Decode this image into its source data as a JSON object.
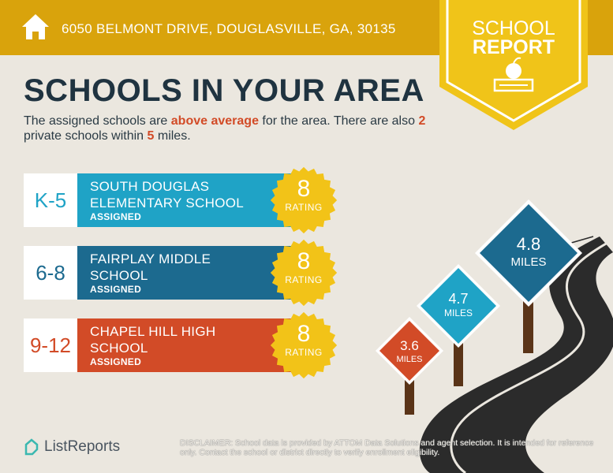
{
  "header": {
    "address": "6050 BELMONT DRIVE, DOUGLASVILLE, GA, 30135",
    "icon": "home-icon"
  },
  "badge": {
    "line1": "SCHOOL",
    "line2": "REPORT",
    "icon": "apple-on-book-icon"
  },
  "title": "SCHOOLS IN YOUR AREA",
  "subtitle": {
    "p1": "The assigned schools are ",
    "highlight": "above average",
    "p2": " for the area. There are also ",
    "count": "2",
    "p3": " private schools within ",
    "miles": "5",
    "p4": " miles."
  },
  "schools": [
    {
      "grades": "K-5",
      "name1": "SOUTH DOUGLAS",
      "name2": "ELEMENTARY SCHOOL",
      "status": "ASSIGNED",
      "rating": "8",
      "rating_label": "RATING",
      "color": "#1fa3c6"
    },
    {
      "grades": "6-8",
      "name1": "FAIRPLAY MIDDLE",
      "name2": "SCHOOL",
      "status": "ASSIGNED",
      "rating": "8",
      "rating_label": "RATING",
      "color": "#1c6a8f"
    },
    {
      "grades": "9-12",
      "name1": "CHAPEL HILL HIGH",
      "name2": "SCHOOL",
      "status": "ASSIGNED",
      "rating": "8",
      "rating_label": "RATING",
      "color": "#d24b27"
    }
  ],
  "signs": [
    {
      "value": "3.6",
      "unit": "MILES",
      "color": "#d24b27"
    },
    {
      "value": "4.7",
      "unit": "MILES",
      "color": "#1fa3c6"
    },
    {
      "value": "4.8",
      "unit": "MILES",
      "color": "#1c6a8f"
    }
  ],
  "footer": {
    "logo": "ListReports",
    "disclaimer_label": "DISCLAIMER:",
    "disclaimer": " School data is provided by ATTOM Data Solutions and agent selection. It is intended for reference only. Contact the school or district directly to verify enrollment eligibility."
  }
}
